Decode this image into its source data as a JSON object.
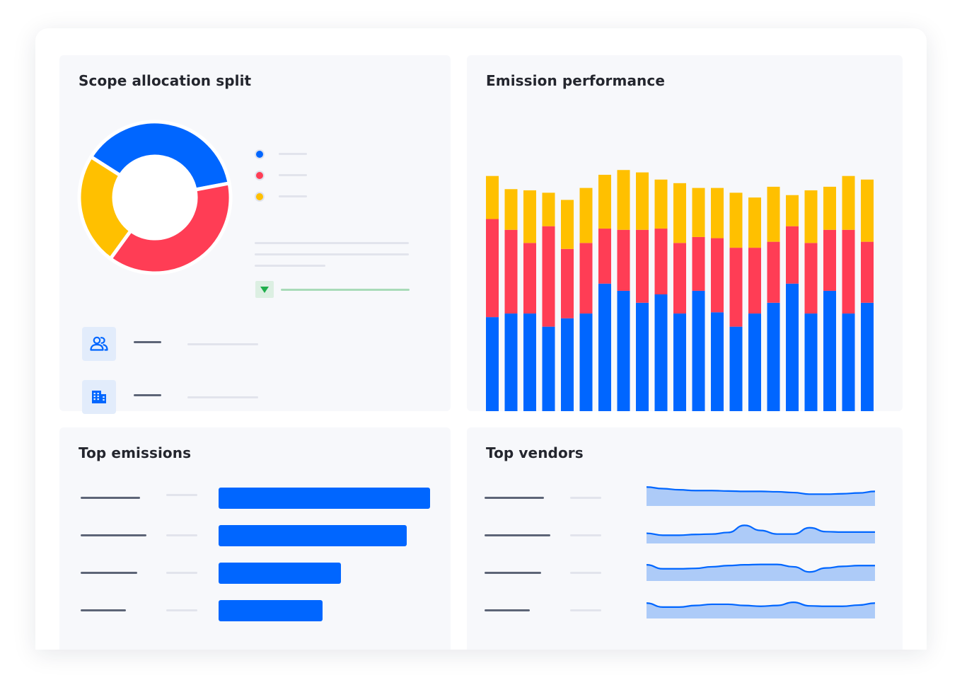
{
  "colors": {
    "blue": "#0066ff",
    "red": "#ff3d55",
    "yellow": "#ffc000",
    "spark_fill": "#adcbf8",
    "trend_green": "#1fae4b"
  },
  "cards": {
    "scope": {
      "title": "Scope allocation split"
    },
    "performance": {
      "title": "Emission performance"
    },
    "top_emissions": {
      "title": "Top emissions"
    },
    "top_vendors": {
      "title": "Top vendors"
    }
  },
  "icons": {
    "users": "users-icon",
    "building": "building-icon",
    "trend": "triangle-down-icon"
  },
  "chart_data": [
    {
      "type": "pie",
      "variant": "donut",
      "series": [
        {
          "color": "#0066ff",
          "value": 0.38
        },
        {
          "color": "#ff3d55",
          "value": 0.38
        },
        {
          "color": "#ffc000",
          "value": 0.24
        }
      ]
    },
    {
      "type": "bar",
      "stacked": true,
      "ylim": [
        0,
        100
      ],
      "series": [
        {
          "color": "#0066ff",
          "values": [
            40.5,
            42,
            42,
            36.5,
            40,
            42,
            54.5,
            51.5,
            46.5,
            50,
            42,
            51.5,
            42.5,
            36.5,
            42,
            46.5,
            54.5,
            42,
            51.5,
            42,
            46.5
          ]
        },
        {
          "color": "#ff3d55",
          "values": [
            41,
            35,
            29.5,
            42,
            29,
            29.5,
            23,
            25.5,
            30.5,
            27.5,
            29.5,
            22.5,
            31,
            33,
            27.5,
            25.5,
            24,
            29.5,
            25.5,
            35,
            25.5
          ]
        },
        {
          "color": "#ffc000",
          "values": [
            18,
            17,
            22,
            14,
            20.5,
            23,
            22.5,
            25,
            24,
            20.5,
            25,
            20.5,
            21,
            23,
            21,
            23,
            13,
            22,
            18,
            22.5,
            26
          ]
        }
      ]
    },
    {
      "type": "bar",
      "orientation": "horizontal",
      "xlim": [
        0,
        100
      ],
      "values": [
        100,
        89,
        58,
        49
      ]
    },
    {
      "type": "area",
      "sparklines": true,
      "ylim": [
        0,
        100
      ],
      "series": [
        {
          "values": [
            92,
            84,
            78,
            74,
            74,
            72,
            70,
            70,
            68,
            64,
            56,
            56,
            58,
            62,
            70
          ]
        },
        {
          "values": [
            48,
            38,
            38,
            42,
            44,
            52,
            88,
            62,
            44,
            44,
            76,
            56,
            54,
            54,
            54
          ]
        },
        {
          "values": [
            78,
            58,
            58,
            60,
            68,
            74,
            78,
            80,
            80,
            68,
            42,
            62,
            70,
            74,
            74
          ]
        },
        {
          "values": [
            74,
            54,
            54,
            62,
            68,
            68,
            62,
            58,
            62,
            78,
            60,
            58,
            58,
            64,
            74
          ]
        }
      ]
    }
  ]
}
